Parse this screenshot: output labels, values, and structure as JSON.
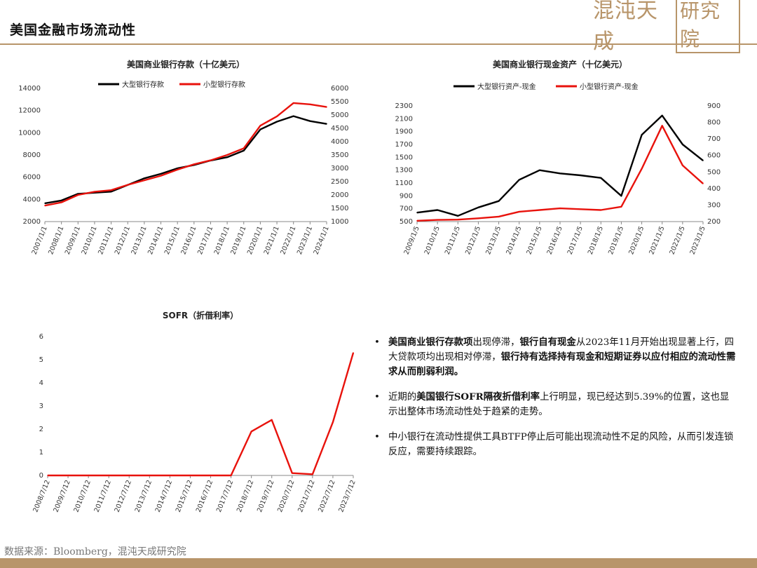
{
  "header": {
    "title": "美国金融市场流动性",
    "logo_text": "混沌天成",
    "logo_stamp": "研究院"
  },
  "footer": {
    "source": "数据来源：Bloomberg，混沌天成研究院"
  },
  "colors": {
    "black_series": "#000000",
    "red_series": "#e8120c",
    "gold_rule": "#b8956a"
  },
  "chart_data": [
    {
      "type": "line",
      "title": "美国商业银行存款（十亿美元）",
      "x": [
        "2007/1/1",
        "2008/1/1",
        "2009/1/1",
        "2010/1/1",
        "2011/1/1",
        "2012/1/1",
        "2013/1/1",
        "2014/1/1",
        "2015/1/1",
        "2016/1/1",
        "2017/1/1",
        "2018/1/1",
        "2019/1/1",
        "2020/1/1",
        "2021/1/1",
        "2022/1/1",
        "2023/1/1",
        "2024/1/1"
      ],
      "ylim_left": [
        2000,
        14000
      ],
      "yticks_left": [
        "2000",
        "4000",
        "6000",
        "8000",
        "10000",
        "12000",
        "14000"
      ],
      "ylim_right": [
        1000,
        6000
      ],
      "yticks_right": [
        "1000",
        "1500",
        "2000",
        "2500",
        "3000",
        "3500",
        "4000",
        "4500",
        "5000",
        "5500",
        "6000"
      ],
      "series": [
        {
          "name": "大型银行存款",
          "axis": "left",
          "color": "#000000",
          "values": [
            3650,
            3900,
            4500,
            4600,
            4700,
            5300,
            5900,
            6300,
            6800,
            7100,
            7500,
            7800,
            8400,
            10300,
            11000,
            11500,
            11050,
            10800
          ]
        },
        {
          "name": "小型银行存款",
          "axis": "right",
          "color": "#e8120c",
          "values": [
            1600,
            1720,
            2000,
            2120,
            2180,
            2380,
            2550,
            2720,
            2950,
            3150,
            3300,
            3500,
            3750,
            4600,
            4950,
            5450,
            5400,
            5300
          ]
        }
      ]
    },
    {
      "type": "line",
      "title": "美国商业银行现金资产（十亿美元）",
      "x": [
        "2009/1/5",
        "2010/1/5",
        "2011/1/5",
        "2012/1/5",
        "2013/1/5",
        "2014/1/5",
        "2015/1/5",
        "2016/1/5",
        "2017/1/5",
        "2018/1/5",
        "2019/1/5",
        "2020/1/5",
        "2021/1/5",
        "2022/1/5",
        "2023/1/5"
      ],
      "ylim_left": [
        500,
        2300
      ],
      "yticks_left": [
        "500",
        "700",
        "900",
        "1100",
        "1300",
        "1500",
        "1700",
        "1900",
        "2100",
        "2300"
      ],
      "ylim_right": [
        200,
        900
      ],
      "yticks_right": [
        "200",
        "300",
        "400",
        "500",
        "600",
        "700",
        "800",
        "900"
      ],
      "series": [
        {
          "name": "大型银行资产-现金",
          "axis": "left",
          "color": "#000000",
          "values": [
            640,
            680,
            590,
            720,
            820,
            1150,
            1300,
            1250,
            1220,
            1180,
            900,
            1850,
            2150,
            1700,
            1450
          ]
        },
        {
          "name": "小型银行资产-现金",
          "axis": "right",
          "color": "#e8120c",
          "values": [
            205,
            210,
            212,
            220,
            230,
            260,
            270,
            280,
            275,
            270,
            290,
            520,
            780,
            540,
            430
          ]
        }
      ]
    },
    {
      "type": "line",
      "title": "SOFR（折借利率）",
      "x": [
        "2008/7/12",
        "2009/7/12",
        "2010/7/12",
        "2011/7/12",
        "2012/7/12",
        "2013/7/12",
        "2014/7/12",
        "2015/7/12",
        "2016/7/12",
        "2017/7/12",
        "2018/7/12",
        "2019/7/12",
        "2020/7/12",
        "2021/7/12",
        "2022/7/12",
        "2023/7/12"
      ],
      "ylim": [
        0,
        6
      ],
      "yticks": [
        "0",
        "1",
        "2",
        "3",
        "4",
        "5",
        "6"
      ],
      "series": [
        {
          "name": "SOFR",
          "color": "#e8120c",
          "values": [
            0,
            0,
            0,
            0,
            0,
            0,
            0,
            0,
            0,
            0,
            1.9,
            2.4,
            0.1,
            0.05,
            2.3,
            5.3
          ]
        }
      ]
    }
  ],
  "bullets": [
    {
      "parts": [
        {
          "text": "美国商业银行存款项",
          "bold": true
        },
        {
          "text": "出现停滞，",
          "bold": false
        },
        {
          "text": "银行自有现金",
          "bold": true
        },
        {
          "text": "从2023年11月开始出现显著上行，四大贷款项均出现相对停滞，",
          "bold": false
        },
        {
          "text": "银行持有选择持有现金和短期证券以应付相应的流动性需求从而削弱利润。",
          "bold": true
        }
      ]
    },
    {
      "parts": [
        {
          "text": "近期的",
          "bold": false
        },
        {
          "text": "美国银行SOFR隔夜折借利率",
          "bold": true
        },
        {
          "text": "上行明显，现已经达到5.39%的位置，这也显示出整体市场流动性处于趋紧的走势。",
          "bold": false
        }
      ]
    },
    {
      "parts": [
        {
          "text": "中小银行在流动性提供工具BTFP停止后可能出现流动性不足的风险，从而引发连锁反应，需要持续跟踪。",
          "bold": false
        }
      ]
    }
  ]
}
